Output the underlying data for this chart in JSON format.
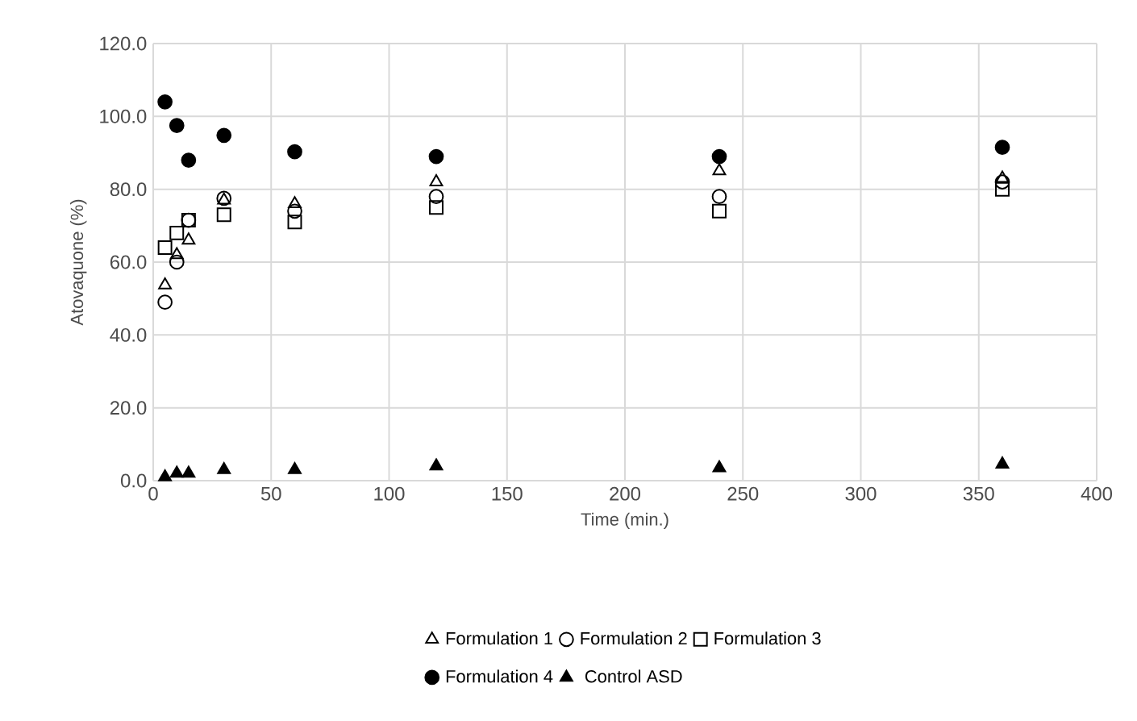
{
  "chart_data": {
    "type": "scatter",
    "xlabel": "Time (min.)",
    "ylabel": "Atovaquone  (%)",
    "x": [
      5,
      10,
      15,
      30,
      60,
      120,
      240,
      360
    ],
    "series": [
      {
        "name": "Formulation 1",
        "color": "#000000",
        "marker": "triangle",
        "values": [
          53.7,
          62,
          66,
          77,
          76,
          82,
          85,
          83
        ]
      },
      {
        "name": "Formulation 2",
        "color": "#000000",
        "marker": "circle",
        "values": [
          49,
          60,
          71.5,
          77.5,
          74,
          78,
          78,
          82
        ]
      },
      {
        "name": "Formulation 3",
        "color": "#000000",
        "marker": "square",
        "values": [
          64,
          68,
          71.5,
          73,
          71,
          75,
          74,
          80
        ]
      },
      {
        "name": "Formulation 4",
        "color": "#000000",
        "marker": "circle",
        "values": [
          104,
          97.5,
          88,
          94.8,
          90.3,
          89,
          89,
          91.5
        ]
      },
      {
        "name": "Control ASD",
        "color": "#000000",
        "marker": "triangle",
        "values": [
          1,
          2,
          2,
          3,
          3,
          4,
          3.5,
          4.5
        ]
      }
    ],
    "xlim": [
      0,
      400
    ],
    "xticks": [
      0,
      50,
      100,
      150,
      200,
      250,
      300,
      350,
      400
    ],
    "ylim": [
      0,
      120
    ],
    "yticks": [
      {
        "value": 0,
        "label": "0.0"
      },
      {
        "value": 20,
        "label": "20.0"
      },
      {
        "value": 40,
        "label": "40.0"
      },
      {
        "value": 60,
        "label": "60.0"
      },
      {
        "value": 80,
        "label": "80.0"
      },
      {
        "value": 100,
        "label": "100.0"
      },
      {
        "value": 120,
        "label": "120.0"
      }
    ],
    "grid": true,
    "legend": "bottom"
  }
}
